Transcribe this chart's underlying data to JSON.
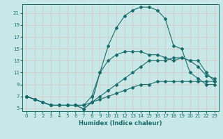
{
  "xlabel": "Humidex (Indice chaleur)",
  "ylabel": "",
  "background_color": "#c8e8e8",
  "grid_color": "#b0d4d4",
  "line_color": "#1a6b6b",
  "xlim": [
    -0.5,
    23.5
  ],
  "ylim": [
    4.5,
    22.5
  ],
  "xticks": [
    0,
    1,
    2,
    3,
    4,
    5,
    6,
    7,
    8,
    9,
    10,
    11,
    12,
    13,
    14,
    15,
    16,
    17,
    18,
    19,
    20,
    21,
    22,
    23
  ],
  "yticks": [
    5,
    7,
    9,
    11,
    13,
    15,
    17,
    19,
    21
  ],
  "series": [
    {
      "x": [
        0,
        1,
        2,
        3,
        4,
        5,
        6,
        7,
        8,
        9,
        10,
        11,
        12,
        13,
        14,
        15,
        16,
        17,
        18,
        19,
        20,
        21,
        22,
        23
      ],
      "y": [
        7,
        6.5,
        6,
        5.5,
        5.5,
        5.5,
        5.5,
        5.5,
        6,
        6.5,
        7,
        7.5,
        8,
        8.5,
        9,
        9,
        9.5,
        9.5,
        9.5,
        9.5,
        9.5,
        9.5,
        9.5,
        9.5
      ]
    },
    {
      "x": [
        0,
        1,
        2,
        3,
        4,
        5,
        6,
        7,
        8,
        9,
        10,
        11,
        12,
        13,
        14,
        15,
        16,
        17,
        18,
        19,
        20,
        21,
        22,
        23
      ],
      "y": [
        7,
        6.5,
        6,
        5.5,
        5.5,
        5.5,
        5.5,
        5.5,
        7,
        11,
        13,
        14,
        14.5,
        14.5,
        14.5,
        14,
        14,
        13.5,
        13,
        13.5,
        13,
        12,
        10.5,
        10
      ]
    },
    {
      "x": [
        0,
        1,
        2,
        3,
        4,
        5,
        6,
        7,
        8,
        9,
        10,
        11,
        12,
        13,
        14,
        15,
        16,
        17,
        18,
        19,
        20,
        21,
        22,
        23
      ],
      "y": [
        7,
        6.5,
        6,
        5.5,
        5.5,
        5.5,
        5.5,
        4.9,
        6,
        7,
        8,
        9,
        10,
        11,
        12,
        13,
        13,
        13,
        13.5,
        13.5,
        13,
        13,
        11,
        9.5
      ]
    },
    {
      "x": [
        0,
        1,
        2,
        3,
        4,
        5,
        6,
        7,
        8,
        9,
        10,
        11,
        12,
        13,
        14,
        15,
        16,
        17,
        18,
        19,
        20,
        21,
        22,
        23
      ],
      "y": [
        7,
        6.5,
        6,
        5.5,
        5.5,
        5.5,
        5.5,
        4.9,
        6,
        11,
        15.5,
        18.5,
        20.5,
        21.5,
        22,
        22,
        21.5,
        20,
        15.5,
        15,
        11,
        10,
        9,
        9
      ]
    }
  ]
}
